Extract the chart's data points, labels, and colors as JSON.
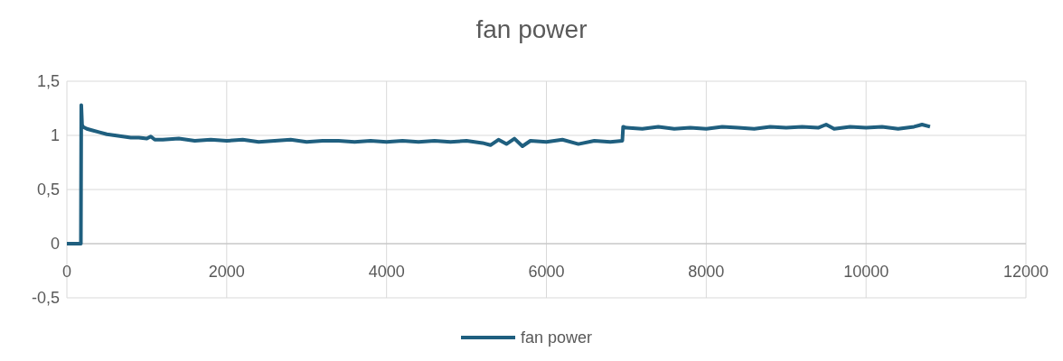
{
  "chart_data": {
    "type": "line",
    "title": "fan power",
    "x": [
      0,
      170,
      175,
      180,
      190,
      200,
      250,
      300,
      400,
      500,
      600,
      700,
      800,
      900,
      1000,
      1050,
      1100,
      1200,
      1400,
      1600,
      1800,
      2000,
      2200,
      2400,
      2600,
      2800,
      3000,
      3200,
      3400,
      3600,
      3800,
      4000,
      4200,
      4400,
      4600,
      4800,
      5000,
      5200,
      5300,
      5400,
      5500,
      5600,
      5700,
      5800,
      6000,
      6200,
      6400,
      6600,
      6800,
      6950,
      6960,
      7000,
      7200,
      7400,
      7600,
      7800,
      8000,
      8200,
      8400,
      8600,
      8800,
      9000,
      9200,
      9400,
      9500,
      9600,
      9800,
      10000,
      10200,
      10400,
      10600,
      10700,
      10800
    ],
    "series": [
      {
        "name": "fan power",
        "color": "#1f5f7f",
        "values": [
          0,
          0,
          0,
          1.28,
          1.1,
          1.08,
          1.06,
          1.05,
          1.03,
          1.01,
          1,
          0.99,
          0.98,
          0.98,
          0.97,
          0.99,
          0.96,
          0.96,
          0.97,
          0.95,
          0.96,
          0.95,
          0.96,
          0.94,
          0.95,
          0.96,
          0.94,
          0.95,
          0.95,
          0.94,
          0.95,
          0.94,
          0.95,
          0.94,
          0.95,
          0.94,
          0.95,
          0.93,
          0.91,
          0.96,
          0.92,
          0.97,
          0.9,
          0.95,
          0.94,
          0.96,
          0.92,
          0.95,
          0.94,
          0.95,
          1.08,
          1.07,
          1.06,
          1.08,
          1.06,
          1.07,
          1.06,
          1.08,
          1.07,
          1.06,
          1.08,
          1.07,
          1.08,
          1.07,
          1.1,
          1.06,
          1.08,
          1.07,
          1.08,
          1.06,
          1.08,
          1.1,
          1.08
        ]
      }
    ],
    "xlim": [
      0,
      12000
    ],
    "xticks": [
      0,
      2000,
      4000,
      6000,
      8000,
      10000,
      12000
    ],
    "ylim": [
      -0.5,
      1.5
    ],
    "yticks": [
      {
        "value": -0.5,
        "label": "-0,5"
      },
      0,
      {
        "value": 0.5,
        "label": "0,5"
      },
      1,
      {
        "value": 1.5,
        "label": "1,5"
      }
    ],
    "grid": true,
    "legend": "bottom",
    "line_style": "solid",
    "marker": "none"
  }
}
